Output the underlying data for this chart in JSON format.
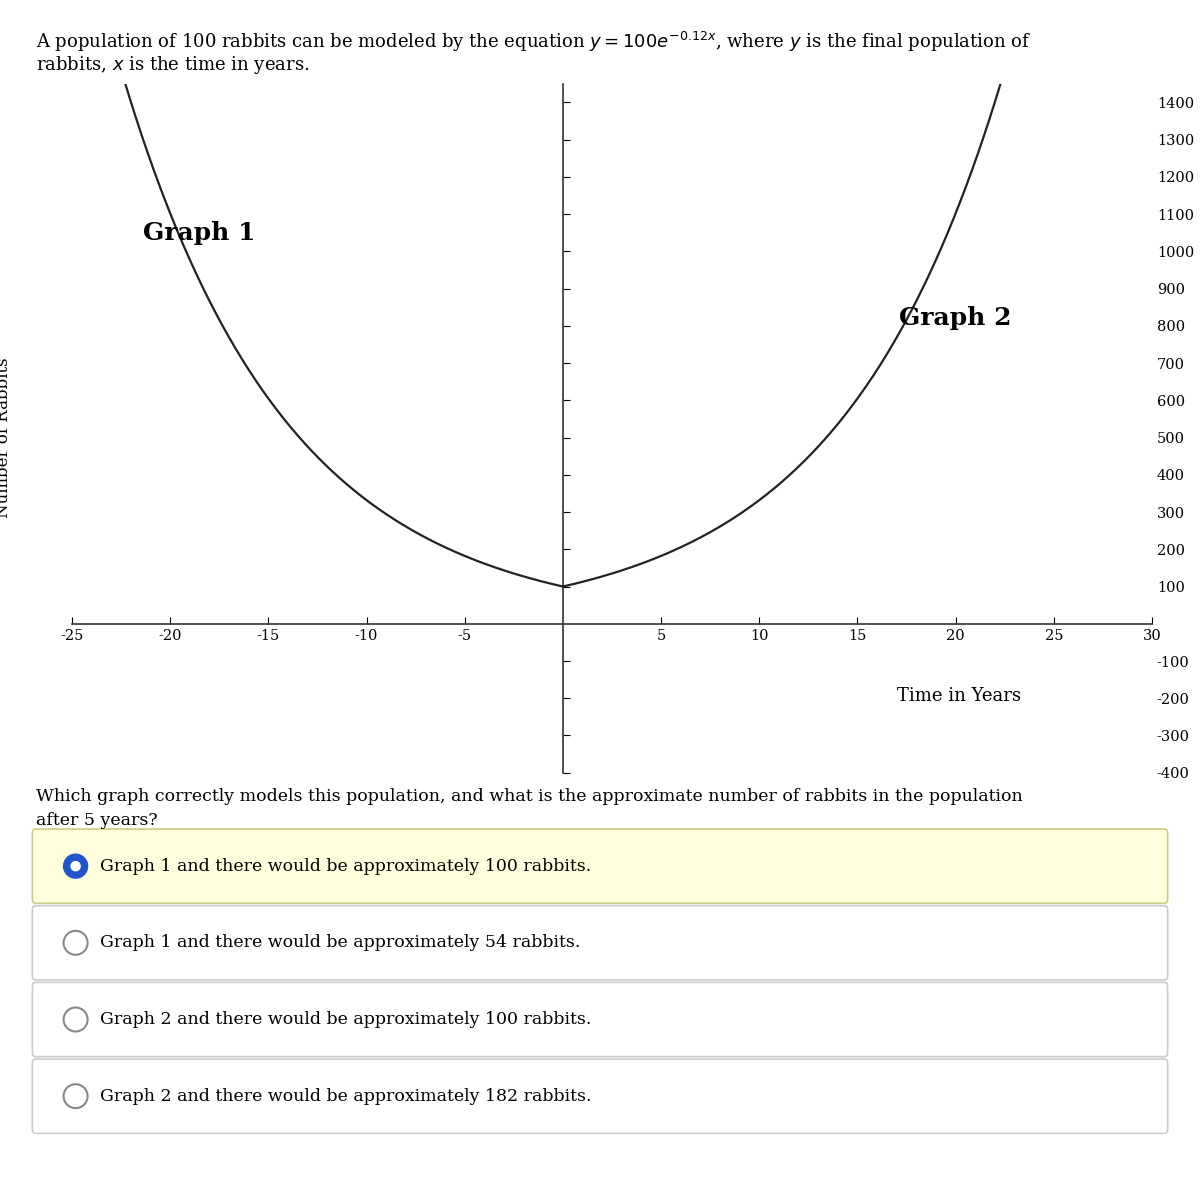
{
  "graph1_label": "Graph 1",
  "graph2_label": "Graph 2",
  "ylabel": "Number of Rabbits",
  "xlabel": "Time in Years",
  "x_min": -25,
  "x_max": 30,
  "y_min": -400,
  "y_max": 1450,
  "x_ticks": [
    -25,
    -20,
    -15,
    -10,
    -5,
    5,
    10,
    15,
    20,
    25,
    30
  ],
  "y_ticks": [
    -400,
    -300,
    -200,
    -100,
    100,
    200,
    300,
    400,
    500,
    600,
    700,
    800,
    900,
    1000,
    1100,
    1200,
    1300,
    1400
  ],
  "curve_color": "#222222",
  "axis_color": "#333333",
  "bg_color": "#ffffff",
  "font_size_tick": 10.5,
  "font_size_graph_label": 18,
  "font_size_xlabel": 13,
  "font_size_ylabel": 12,
  "question_text": "Which graph correctly models this population, and what is the approximate number of rabbits in the population after 5 years?",
  "answers": [
    "Graph 1 and there would be approximately 100 rabbits.",
    "Graph 1 and there would be approximately 54 rabbits.",
    "Graph 2 and there would be approximately 100 rabbits.",
    "Graph 2 and there would be approximately 182 rabbits."
  ],
  "selected_answer": 0,
  "selected_color": "#2255cc",
  "answer_bg_selected": "#ffffdd",
  "answer_bg_normal": "#ffffff",
  "answer_border_selected": "#cccc88",
  "answer_border_normal": "#cccccc"
}
